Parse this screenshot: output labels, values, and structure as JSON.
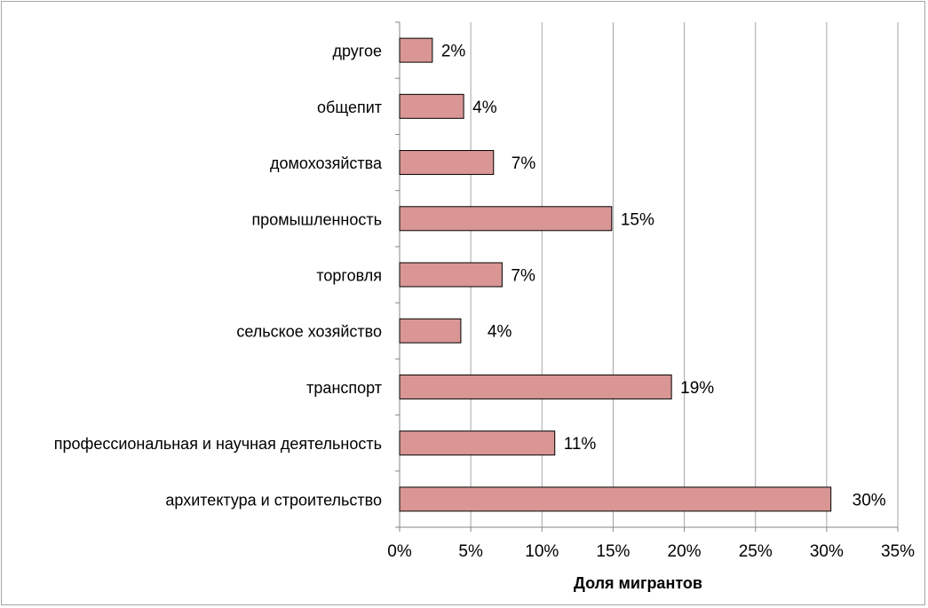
{
  "chart_data": {
    "type": "bar",
    "orientation": "horizontal",
    "title": "",
    "xlabel": "Доля мигрантов",
    "ylabel": "",
    "xlim": [
      0,
      35
    ],
    "x_ticks": [
      "0%",
      "5%",
      "10%",
      "15%",
      "20%",
      "25%",
      "30%",
      "35%"
    ],
    "x_tick_values": [
      0,
      5,
      10,
      15,
      20,
      25,
      30,
      35
    ],
    "grid": "vertical",
    "legend": "none",
    "bar_color": "#d99694",
    "categories": [
      "другое",
      "общепит",
      "домохозяйства",
      "промышленность",
      "торговля",
      "сельское хозяйство",
      "транспорт",
      "профессиональная и научная деятельность",
      "архитектура и строительство"
    ],
    "values": [
      2.3,
      4.5,
      6.6,
      14.9,
      7.2,
      4.3,
      19.1,
      10.9,
      30.3
    ],
    "data_labels": [
      "2%",
      "4%",
      "7%",
      "15%",
      "7%",
      "4%",
      "19%",
      "11%",
      "30%"
    ]
  }
}
